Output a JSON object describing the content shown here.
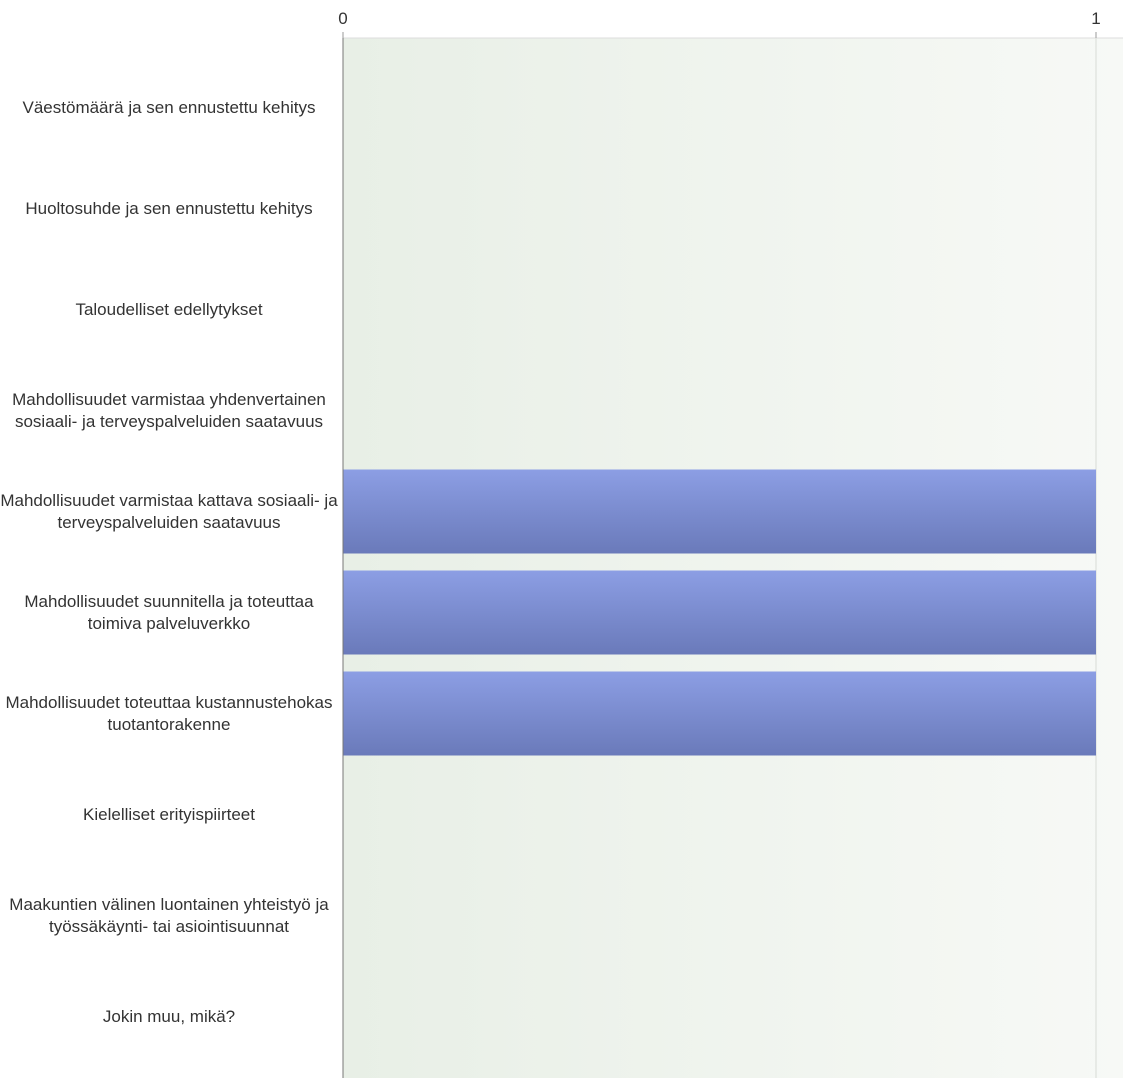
{
  "chart_data": {
    "type": "bar",
    "orientation": "horizontal",
    "categories": [
      "Väestömäärä ja sen ennustettu kehitys",
      "Huoltosuhde ja sen ennustettu kehitys",
      "Taloudelliset edellytykset",
      "Mahdollisuudet varmistaa yhdenvertainen sosiaali- ja terveyspalveluiden saatavuus",
      "Mahdollisuudet varmistaa kattava sosiaali- ja terveyspalveluiden saatavuus",
      "Mahdollisuudet suunnitella ja toteuttaa toimiva palveluverkko",
      "Mahdollisuudet toteuttaa kustannustehokas tuotantorakenne",
      "Kielelliset erityispiirteet",
      "Maakuntien välinen luontainen yhteistyö ja työssäkäynti- tai asiointisuunnat",
      "Jokin muu, mikä?"
    ],
    "values": [
      0,
      0,
      0,
      0,
      1,
      1,
      1,
      0,
      0,
      0
    ],
    "color": "#7d8ed6",
    "xlim": [
      0,
      1
    ],
    "xticks": [
      0,
      1
    ],
    "grid": true
  }
}
